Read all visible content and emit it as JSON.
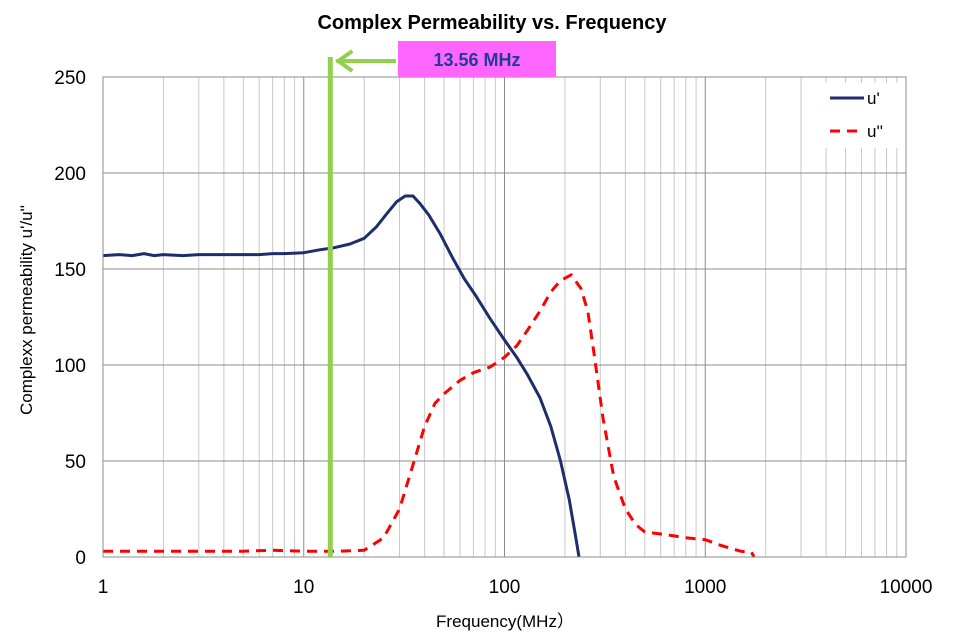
{
  "chart_data": {
    "type": "line",
    "title": "Complex Permeability vs. Frequency",
    "xlabel": "Frequency(MHz）",
    "ylabel": "Complexx permeability u'/u''",
    "xscale": "log",
    "xlim": [
      1,
      10000
    ],
    "ylim": [
      0,
      250
    ],
    "xticks": [
      "1",
      "10",
      "100",
      "1000",
      "10000"
    ],
    "yticks": [
      "0",
      "50",
      "100",
      "150",
      "200",
      "250"
    ],
    "grid": true,
    "legend_position": "top-right",
    "series": [
      {
        "name": "u'",
        "color": "#1f2d6b",
        "style": "solid",
        "points": [
          [
            1,
            157
          ],
          [
            1.2,
            157.5
          ],
          [
            1.4,
            157
          ],
          [
            1.6,
            158
          ],
          [
            1.8,
            157
          ],
          [
            2,
            157.5
          ],
          [
            2.5,
            157
          ],
          [
            3,
            157.5
          ],
          [
            4,
            157.5
          ],
          [
            5,
            157.5
          ],
          [
            6,
            157.5
          ],
          [
            7,
            158
          ],
          [
            8,
            158
          ],
          [
            10,
            158.5
          ],
          [
            12,
            160
          ],
          [
            14,
            161
          ],
          [
            17,
            163
          ],
          [
            20,
            166
          ],
          [
            23,
            172
          ],
          [
            26,
            179
          ],
          [
            29,
            185
          ],
          [
            32,
            188
          ],
          [
            35,
            188
          ],
          [
            38,
            184
          ],
          [
            42,
            178
          ],
          [
            48,
            168
          ],
          [
            55,
            156
          ],
          [
            63,
            145
          ],
          [
            72,
            136
          ],
          [
            85,
            124
          ],
          [
            100,
            113
          ],
          [
            115,
            104
          ],
          [
            130,
            95
          ],
          [
            150,
            83
          ],
          [
            170,
            68
          ],
          [
            190,
            50
          ],
          [
            210,
            30
          ],
          [
            225,
            12
          ],
          [
            235,
            0
          ]
        ]
      },
      {
        "name": "u''",
        "color": "#ff0000",
        "style": "dashed",
        "points": [
          [
            1,
            3
          ],
          [
            2,
            3
          ],
          [
            3,
            3
          ],
          [
            5,
            3
          ],
          [
            7,
            3.5
          ],
          [
            10,
            3
          ],
          [
            15,
            3
          ],
          [
            20,
            3.5
          ],
          [
            25,
            10
          ],
          [
            30,
            25
          ],
          [
            35,
            48
          ],
          [
            40,
            68
          ],
          [
            45,
            80
          ],
          [
            50,
            85
          ],
          [
            60,
            92
          ],
          [
            70,
            96
          ],
          [
            85,
            99
          ],
          [
            100,
            104
          ],
          [
            115,
            110
          ],
          [
            130,
            118
          ],
          [
            150,
            128
          ],
          [
            170,
            138
          ],
          [
            190,
            144
          ],
          [
            215,
            147
          ],
          [
            240,
            140
          ],
          [
            260,
            128
          ],
          [
            280,
            105
          ],
          [
            310,
            72
          ],
          [
            350,
            42
          ],
          [
            400,
            25
          ],
          [
            450,
            17
          ],
          [
            500,
            13
          ],
          [
            600,
            12
          ],
          [
            700,
            11
          ],
          [
            800,
            10
          ],
          [
            1000,
            9
          ],
          [
            1200,
            6
          ],
          [
            1500,
            3
          ],
          [
            1700,
            2.5
          ],
          [
            1750,
            0
          ]
        ]
      }
    ],
    "annotation": {
      "label": "13.56 MHz",
      "x": 13.56,
      "line_color": "#92d050",
      "box_color": "#ff66ff",
      "text_color": "#1f3e8f"
    }
  }
}
